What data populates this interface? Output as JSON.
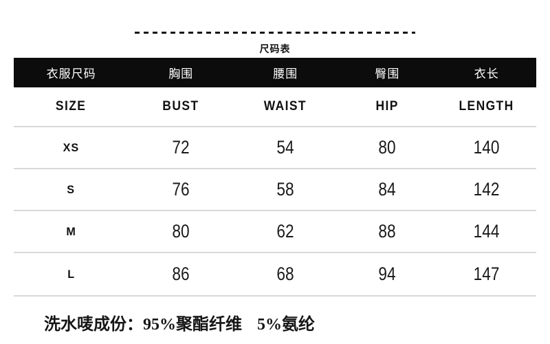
{
  "colors": {
    "header_bg": "#0c0c0c",
    "header_text": "#ffffff",
    "divider": "#d8d8d8",
    "text": "#111111",
    "background": "#ffffff"
  },
  "size_chart": {
    "title": "尺码表",
    "header_cn": [
      "衣服尺码",
      "胸围",
      "腰围",
      "臀围",
      "衣长"
    ],
    "header_en": [
      "SIZE",
      "BUST",
      "WAIST",
      "HIP",
      "LENGTH"
    ],
    "rows": [
      {
        "size": "XS",
        "bust": "72",
        "waist": "54",
        "hip": "80",
        "length": "140"
      },
      {
        "size": "S",
        "bust": "76",
        "waist": "58",
        "hip": "84",
        "length": "142"
      },
      {
        "size": "M",
        "bust": "80",
        "waist": "62",
        "hip": "88",
        "length": "144"
      },
      {
        "size": "L",
        "bust": "86",
        "waist": "68",
        "hip": "94",
        "length": "147"
      }
    ]
  },
  "care_label": {
    "prefix": "洗水唛成份：",
    "items": [
      "95%聚酯纤维",
      "5%氨纶"
    ]
  }
}
